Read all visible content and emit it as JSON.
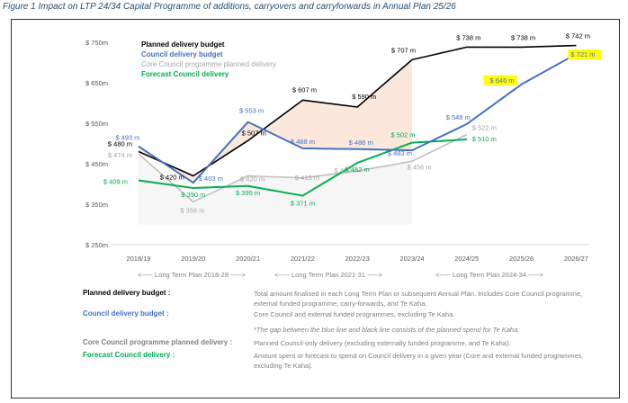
{
  "caption": "Figure 1 Impact on LTP 24/34 Capital Programme of additions, carryovers and carryforwards in Annual Plan 25/26",
  "chart_data": {
    "type": "line",
    "categories": [
      "2018/19",
      "2019/20",
      "2020/21",
      "2021/22",
      "2022/23",
      "2023/24",
      "2024/25",
      "2025/26",
      "2026/27"
    ],
    "y_ticks": [
      "$ 250m",
      "$ 350m",
      "$ 450m",
      "$ 550m",
      "$ 650m",
      "$ 750m"
    ],
    "ylim": [
      250,
      750
    ],
    "grid": false,
    "legend_position": "top-left",
    "shaded_gap": "between Council delivery budget and Planned delivery budget, 2018/19 to 2023/24",
    "series": [
      {
        "name": "Planned delivery budget",
        "color": "#000000",
        "values": [
          480,
          420,
          507,
          607,
          590,
          707,
          738,
          738,
          742
        ],
        "labels": [
          "$ 480 m",
          "$ 420 m",
          "$ 507 m",
          "$ 607 m",
          "$ 590 m",
          "$ 707 m",
          "$ 738 m",
          "$ 738 m",
          "$ 742 m"
        ]
      },
      {
        "name": "Council delivery budget",
        "color": "#4472c4",
        "values": [
          493,
          403,
          553,
          488,
          486,
          483,
          548,
          646,
          721
        ],
        "labels": [
          "$ 493 m",
          "$ 403 m",
          "$ 553 m",
          "$ 488 m",
          "$ 486 m",
          "$ 483 m",
          "$ 548 m",
          "$ 646 m",
          "$ 721 m"
        ],
        "highlighted_labels": [
          7,
          8
        ]
      },
      {
        "name": "Core Council programme planned delivery",
        "color": "#bfbfbf",
        "values": [
          474,
          356,
          420,
          415,
          432,
          456,
          522,
          null,
          null
        ],
        "labels": [
          "$ 474 m",
          "$ 356 m",
          "$ 420 m",
          "$ 415 m",
          "$ 432 m",
          "$ 456 m",
          "$ 522 m",
          null,
          null
        ]
      },
      {
        "name": "Forecast Council delivery",
        "color": "#00b050",
        "values": [
          409,
          390,
          395,
          371,
          452,
          502,
          510,
          null,
          null
        ],
        "labels": [
          "$ 409 m",
          "$ 390 m",
          "$ 395 m",
          "$ 371 m",
          "$ 452 m",
          "$ 502 m",
          "$ 510 m",
          null,
          null
        ]
      }
    ],
    "period_labels": [
      "<----- Long Term Plan 2018-28 ----->",
      "<----- Long Term Plan 2021-31 ----->",
      "<----- Long Term Plan 2024-34 ----->"
    ]
  },
  "definitions": [
    {
      "term": "Planned delivery budget :",
      "color": "#000000",
      "text": "Total amount finalised in each Long Term Plan or subsequent Annual Plan. Includes Core Council programme, external funded programme, carry-forwards, and Te Kaha."
    },
    {
      "term": "Council delivery budget :",
      "color": "#4472c4",
      "text": "Core Council and external funded programmes, excluding Te Kaha."
    },
    {
      "term": "Core Council programme planned delivery :",
      "color": "#808080",
      "text": "Planned Council-only delivery (excluding externally funded programme, and Te Kaha)."
    },
    {
      "term": "Forecast Council delivery :",
      "color": "#00b050",
      "text": "Amount spent or forecast to spend on Council delivery in a given year (Core and external funded programmes, excluding Te Kaha)."
    }
  ],
  "note": "*The gap between the blue line and black line consists of the planned spend for Te Kaha."
}
